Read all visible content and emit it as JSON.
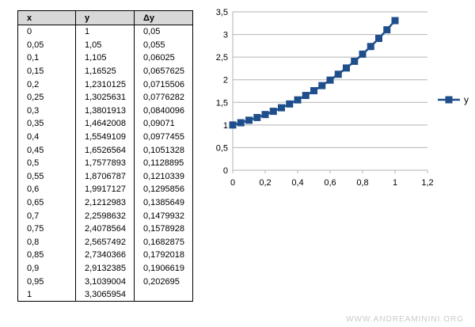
{
  "table": {
    "headers": [
      "x",
      "y",
      "Δy"
    ],
    "rows": [
      [
        "0",
        "1",
        "0,05"
      ],
      [
        "0,05",
        "1,05",
        "0,055"
      ],
      [
        "0,1",
        "1,105",
        "0,06025"
      ],
      [
        "0,15",
        "1,16525",
        "0,0657625"
      ],
      [
        "0,2",
        "1,2310125",
        "0,0715506"
      ],
      [
        "0,25",
        "1,3025631",
        "0,0776282"
      ],
      [
        "0,3",
        "1,3801913",
        "0,0840096"
      ],
      [
        "0,35",
        "1,4642008",
        "0,09071"
      ],
      [
        "0,4",
        "1,5549109",
        "0,0977455"
      ],
      [
        "0,45",
        "1,6526564",
        "0,1051328"
      ],
      [
        "0,5",
        "1,7577893",
        "0,1128895"
      ],
      [
        "0,55",
        "1,8706787",
        "0,1210339"
      ],
      [
        "0,6",
        "1,9917127",
        "0,1295856"
      ],
      [
        "0,65",
        "2,1212983",
        "0,1385649"
      ],
      [
        "0,7",
        "2,2598632",
        "0,1479932"
      ],
      [
        "0,75",
        "2,4078564",
        "0,1578928"
      ],
      [
        "0,8",
        "2,5657492",
        "0,1682875"
      ],
      [
        "0,85",
        "2,7340366",
        "0,1792018"
      ],
      [
        "0,9",
        "2,9132385",
        "0,1906619"
      ],
      [
        "0,95",
        "3,1039004",
        "0,202695"
      ],
      [
        "1",
        "3,3065954",
        ""
      ]
    ]
  },
  "chart_data": {
    "type": "line",
    "title": "",
    "xlabel": "",
    "ylabel": "",
    "xlim": [
      0,
      1.2
    ],
    "ylim": [
      0,
      3.5
    ],
    "xticks": [
      "0",
      "0,2",
      "0,4",
      "0,6",
      "0,8",
      "1",
      "1,2"
    ],
    "yticks": [
      "0",
      "0,5",
      "1",
      "1,5",
      "2",
      "2,5",
      "3",
      "3,5"
    ],
    "grid": "horizontal",
    "legend_position": "right",
    "series_color": "#1f4e8c",
    "series": [
      {
        "name": "y",
        "x": [
          0,
          0.05,
          0.1,
          0.15,
          0.2,
          0.25,
          0.3,
          0.35,
          0.4,
          0.45,
          0.5,
          0.55,
          0.6,
          0.65,
          0.7,
          0.75,
          0.8,
          0.85,
          0.9,
          0.95,
          1
        ],
        "values": [
          1,
          1.05,
          1.105,
          1.16525,
          1.2310125,
          1.3025631,
          1.3801913,
          1.4642008,
          1.5549109,
          1.6526564,
          1.7577893,
          1.8706787,
          1.9917127,
          2.1212983,
          2.2598632,
          2.4078564,
          2.5657492,
          2.7340366,
          2.9132385,
          3.1039004,
          3.3065954
        ]
      }
    ]
  },
  "watermark": "WWW.ANDREAMININI.ORG"
}
